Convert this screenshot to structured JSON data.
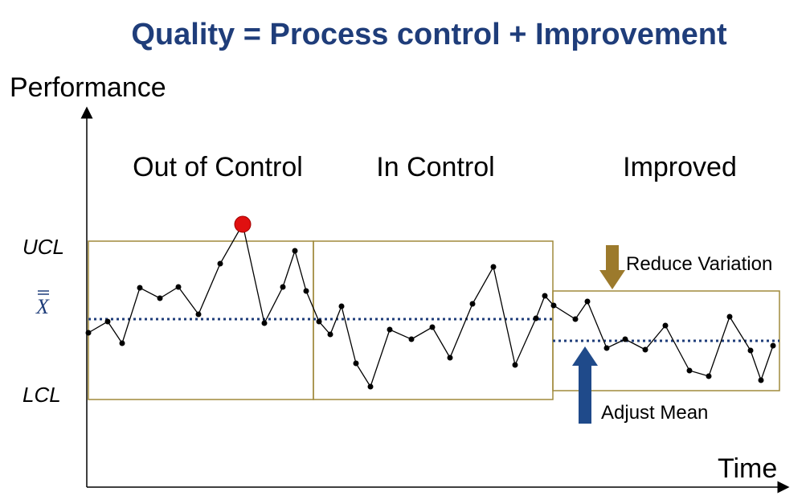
{
  "title": "Quality = Process control + Improvement",
  "y_axis_label": "Performance",
  "x_axis_label": "Time",
  "limits": {
    "ucl": "UCL",
    "mean": "X",
    "lcl": "LCL"
  },
  "phases": [
    "Out of Control",
    "In Control",
    "Improved"
  ],
  "annotations": {
    "reduce_variation": "Reduce Variation",
    "adjust_mean": "Adjust Mean"
  },
  "colors": {
    "title": "#1f3d7a",
    "box": "#a08a3c",
    "mean_line": "#1f3d7a",
    "series": "#000000",
    "outlier": "#e01010",
    "reduce_arrow": "#9c7a2c",
    "adjust_arrow": "#1f4a8a"
  }
}
